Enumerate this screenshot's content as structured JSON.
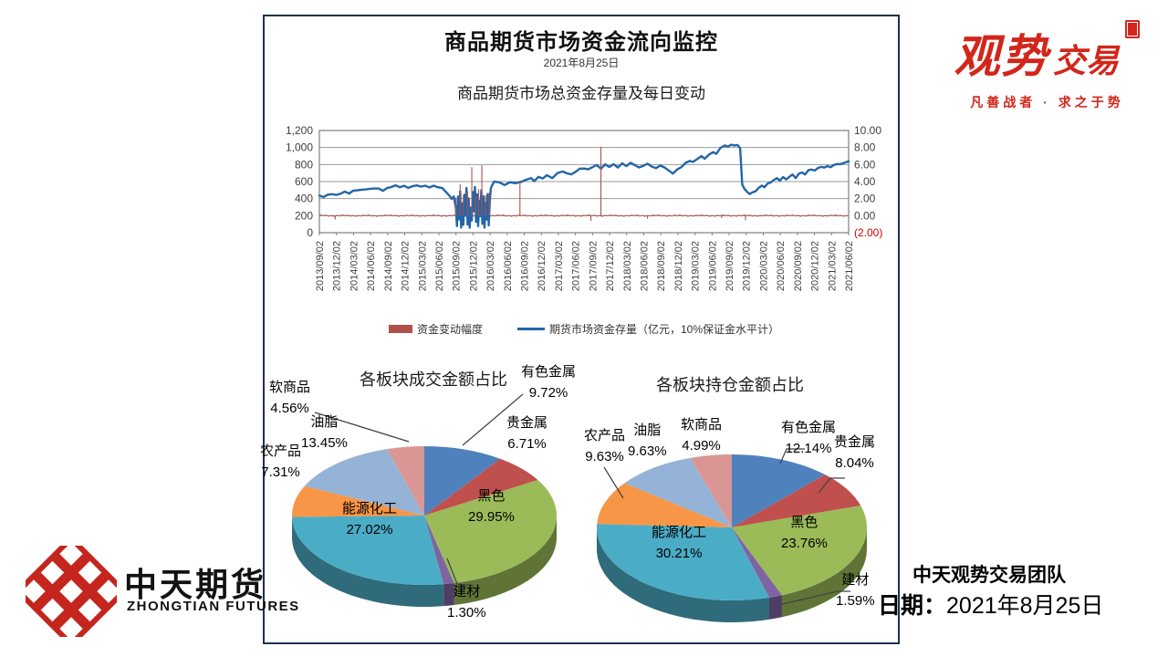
{
  "header": {
    "title": "商品期货市场资金流向监控",
    "date": "2021年8月25日"
  },
  "chart_data": [
    {
      "type": "line",
      "title": "商品期货市场总资金存量及每日变动",
      "x_labels": [
        "2013/09/02",
        "2013/12/02",
        "2014/03/02",
        "2014/06/02",
        "2014/09/02",
        "2014/12/02",
        "2015/03/02",
        "2015/06/02",
        "2015/09/02",
        "2015/12/02",
        "2016/03/02",
        "2016/06/02",
        "2016/09/02",
        "2016/12/02",
        "2017/03/02",
        "2017/06/02",
        "2017/09/02",
        "2017/12/02",
        "2018/03/02",
        "2018/06/02",
        "2018/09/02",
        "2018/12/02",
        "2019/03/02",
        "2019/06/02",
        "2019/09/02",
        "2019/12/02",
        "2020/03/02",
        "2020/06/02",
        "2020/09/02",
        "2020/12/02",
        "2021/03/02",
        "2021/06/02"
      ],
      "left_axis": {
        "ticks": [
          "1,200",
          "1,000",
          "800",
          "600",
          "400",
          "200",
          "0"
        ],
        "min": 0,
        "max": 1200
      },
      "right_axis": {
        "ticks": [
          "10.00",
          "8.00",
          "6.00",
          "4.00",
          "2.00",
          "0.00",
          "(2.00)"
        ],
        "min": -2,
        "max": 10,
        "negative_color": "#cc0000"
      },
      "series": [
        {
          "name": "资金变动幅度",
          "axis": "right",
          "color": "#b0504b",
          "baseline": 0,
          "noise_amplitude": 0.09,
          "spikes": [
            [
              0.03,
              -0.45
            ],
            [
              0.258,
              2.1
            ],
            [
              0.266,
              3.7
            ],
            [
              0.272,
              2.4
            ],
            [
              0.28,
              2.9
            ],
            [
              0.288,
              5.7
            ],
            [
              0.295,
              2.2
            ],
            [
              0.301,
              3.1
            ],
            [
              0.307,
              5.9
            ],
            [
              0.314,
              2.4
            ],
            [
              0.321,
              2.7
            ],
            [
              0.379,
              4.1
            ],
            [
              0.513,
              -0.6
            ],
            [
              0.532,
              8.1
            ],
            [
              0.62,
              -0.35
            ],
            [
              0.76,
              -0.3
            ],
            [
              0.805,
              -0.55
            ]
          ]
        },
        {
          "name": "期货市场资金存量（亿元，10%保证金水平计）",
          "axis": "left",
          "color": "#2366a8",
          "noise_amplitude": 7,
          "points": [
            [
              0,
              435
            ],
            [
              0.008,
              420
            ],
            [
              0.016,
              445
            ],
            [
              0.024,
              455
            ],
            [
              0.032,
              440
            ],
            [
              0.04,
              462
            ],
            [
              0.048,
              478
            ],
            [
              0.056,
              465
            ],
            [
              0.064,
              488
            ],
            [
              0.072,
              505
            ],
            [
              0.08,
              498
            ],
            [
              0.088,
              515
            ],
            [
              0.096,
              508
            ],
            [
              0.104,
              525
            ],
            [
              0.112,
              512
            ],
            [
              0.12,
              498
            ],
            [
              0.128,
              518
            ],
            [
              0.136,
              542
            ],
            [
              0.144,
              552
            ],
            [
              0.152,
              538
            ],
            [
              0.16,
              548
            ],
            [
              0.168,
              528
            ],
            [
              0.176,
              545
            ],
            [
              0.184,
              555
            ],
            [
              0.192,
              542
            ],
            [
              0.2,
              550
            ],
            [
              0.208,
              535
            ],
            [
              0.216,
              548
            ],
            [
              0.224,
              538
            ],
            [
              0.232,
              520
            ],
            [
              0.24,
              478
            ],
            [
              0.246,
              430
            ],
            [
              0.25,
              390
            ],
            [
              0.254,
              430
            ],
            [
              0.258,
              300
            ],
            [
              0.26,
              80
            ],
            [
              0.262,
              420
            ],
            [
              0.264,
              150
            ],
            [
              0.266,
              480
            ],
            [
              0.268,
              60
            ],
            [
              0.27,
              350
            ],
            [
              0.272,
              100
            ],
            [
              0.274,
              450
            ],
            [
              0.276,
              200
            ],
            [
              0.278,
              520
            ],
            [
              0.28,
              90
            ],
            [
              0.282,
              400
            ],
            [
              0.284,
              60
            ],
            [
              0.286,
              300
            ],
            [
              0.288,
              150
            ],
            [
              0.29,
              480
            ],
            [
              0.292,
              250
            ],
            [
              0.294,
              530
            ],
            [
              0.296,
              120
            ],
            [
              0.298,
              450
            ],
            [
              0.3,
              80
            ],
            [
              0.302,
              380
            ],
            [
              0.304,
              200
            ],
            [
              0.306,
              500
            ],
            [
              0.308,
              100
            ],
            [
              0.31,
              420
            ],
            [
              0.312,
              55
            ],
            [
              0.314,
              350
            ],
            [
              0.316,
              160
            ],
            [
              0.318,
              460
            ],
            [
              0.32,
              90
            ],
            [
              0.322,
              380
            ],
            [
              0.324,
              520
            ],
            [
              0.33,
              600
            ],
            [
              0.34,
              585
            ],
            [
              0.35,
              565
            ],
            [
              0.36,
              592
            ],
            [
              0.37,
              575
            ],
            [
              0.38,
              600
            ],
            [
              0.39,
              618
            ],
            [
              0.4,
              638
            ],
            [
              0.406,
              605
            ],
            [
              0.414,
              655
            ],
            [
              0.422,
              638
            ],
            [
              0.43,
              672
            ],
            [
              0.44,
              648
            ],
            [
              0.45,
              695
            ],
            [
              0.46,
              718
            ],
            [
              0.468,
              698
            ],
            [
              0.476,
              682
            ],
            [
              0.484,
              718
            ],
            [
              0.492,
              748
            ],
            [
              0.5,
              758
            ],
            [
              0.508,
              738
            ],
            [
              0.516,
              775
            ],
            [
              0.524,
              788
            ],
            [
              0.532,
              758
            ],
            [
              0.54,
              795
            ],
            [
              0.548,
              778
            ],
            [
              0.556,
              798
            ],
            [
              0.564,
              772
            ],
            [
              0.572,
              808
            ],
            [
              0.58,
              788
            ],
            [
              0.588,
              815
            ],
            [
              0.596,
              798
            ],
            [
              0.604,
              762
            ],
            [
              0.612,
              788
            ],
            [
              0.62,
              808
            ],
            [
              0.628,
              778
            ],
            [
              0.636,
              758
            ],
            [
              0.644,
              788
            ],
            [
              0.652,
              768
            ],
            [
              0.66,
              728
            ],
            [
              0.668,
              698
            ],
            [
              0.676,
              738
            ],
            [
              0.684,
              775
            ],
            [
              0.692,
              815
            ],
            [
              0.7,
              848
            ],
            [
              0.706,
              828
            ],
            [
              0.714,
              868
            ],
            [
              0.722,
              895
            ],
            [
              0.728,
              868
            ],
            [
              0.736,
              915
            ],
            [
              0.744,
              948
            ],
            [
              0.75,
              928
            ],
            [
              0.758,
              995
            ],
            [
              0.766,
              1025
            ],
            [
              0.772,
              1005
            ],
            [
              0.778,
              1040
            ],
            [
              0.784,
              1018
            ],
            [
              0.79,
              1032
            ],
            [
              0.795,
              998
            ],
            [
              0.799,
              560
            ],
            [
              0.803,
              512
            ],
            [
              0.808,
              488
            ],
            [
              0.813,
              452
            ],
            [
              0.818,
              468
            ],
            [
              0.824,
              492
            ],
            [
              0.83,
              520
            ],
            [
              0.836,
              555
            ],
            [
              0.841,
              538
            ],
            [
              0.847,
              572
            ],
            [
              0.853,
              595
            ],
            [
              0.859,
              618
            ],
            [
              0.865,
              638
            ],
            [
              0.87,
              618
            ],
            [
              0.876,
              648
            ],
            [
              0.882,
              628
            ],
            [
              0.888,
              658
            ],
            [
              0.894,
              678
            ],
            [
              0.9,
              648
            ],
            [
              0.906,
              688
            ],
            [
              0.912,
              708
            ],
            [
              0.918,
              688
            ],
            [
              0.924,
              728
            ],
            [
              0.93,
              748
            ],
            [
              0.936,
              726
            ],
            [
              0.942,
              758
            ],
            [
              0.948,
              778
            ],
            [
              0.954,
              758
            ],
            [
              0.96,
              788
            ],
            [
              0.966,
              768
            ],
            [
              0.972,
              792
            ],
            [
              0.978,
              812
            ],
            [
              0.984,
              798
            ],
            [
              0.99,
              822
            ],
            [
              1,
              832
            ]
          ]
        }
      ],
      "grid": true,
      "legend_position": "bottom"
    },
    {
      "type": "pie3d",
      "title": "各板块成交金额占比",
      "slices": [
        {
          "name": "有色金属",
          "value": 9.72,
          "pct": "9.72%",
          "color": "#4F81BD"
        },
        {
          "name": "贵金属",
          "value": 6.71,
          "pct": "6.71%",
          "color": "#C0504D"
        },
        {
          "name": "黑色",
          "value": 29.95,
          "pct": "29.95%",
          "color": "#9BBB59"
        },
        {
          "name": "建材",
          "value": 1.3,
          "pct": "1.30%",
          "color": "#8064A2"
        },
        {
          "name": "能源化工",
          "value": 27.02,
          "pct": "27.02%",
          "color": "#4BACC6"
        },
        {
          "name": "农产品",
          "value": 7.31,
          "pct": "7.31%",
          "color": "#F79646"
        },
        {
          "name": "油脂",
          "value": 13.45,
          "pct": "13.45%",
          "color": "#95B3D7"
        },
        {
          "name": "软商品",
          "value": 4.56,
          "pct": "4.56%",
          "color": "#D99694"
        }
      ]
    },
    {
      "type": "pie3d",
      "title": "各板块持仓金额占比",
      "slices": [
        {
          "name": "有色金属",
          "value": 12.14,
          "pct": "12.14%",
          "color": "#4F81BD"
        },
        {
          "name": "贵金属",
          "value": 8.04,
          "pct": "8.04%",
          "color": "#C0504D"
        },
        {
          "name": "黑色",
          "value": 23.76,
          "pct": "23.76%",
          "color": "#9BBB59"
        },
        {
          "name": "建材",
          "value": 1.59,
          "pct": "1.59%",
          "color": "#8064A2"
        },
        {
          "name": "能源化工",
          "value": 30.21,
          "pct": "30.21%",
          "color": "#4BACC6"
        },
        {
          "name": "农产品",
          "value": 9.63,
          "pct": "9.63%",
          "color": "#F79646"
        },
        {
          "name": "油脂",
          "value": 9.63,
          "pct": "9.63%",
          "color": "#95B3D7"
        },
        {
          "name": "软商品",
          "value": 4.99,
          "pct": "4.99%",
          "color": "#D99694"
        }
      ]
    }
  ],
  "logos": {
    "guanshi": {
      "word1": "观势",
      "word2": "交易",
      "tagline": "凡善战者 · 求之于势",
      "color": "#d2261b"
    },
    "zhongtian": {
      "cn": "中天期货",
      "en": "ZHONGTIAN FUTURES",
      "icon_color": "#c4261d"
    }
  },
  "footer": {
    "team": "中天观势交易团队",
    "date_label": "日期：",
    "date_value": "2021年8月25日"
  }
}
